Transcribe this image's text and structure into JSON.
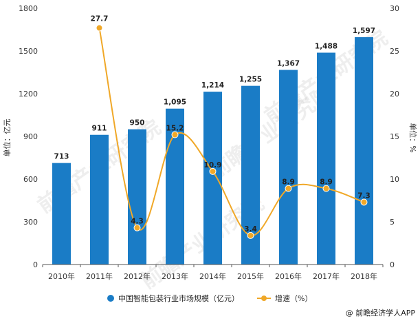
{
  "chart_data": {
    "type": "bar+line",
    "categories": [
      "2010年",
      "2011年",
      "2012年",
      "2013年",
      "2014年",
      "2015年",
      "2016年",
      "2017年",
      "2018年"
    ],
    "series": [
      {
        "name": "中国智能包装行业市场规模（亿元）",
        "type": "bar",
        "axis": "left",
        "values": [
          713,
          911,
          950,
          1095,
          1214,
          1255,
          1367,
          1488,
          1597
        ],
        "labels": [
          "713",
          "911",
          "950",
          "1,095",
          "1,214",
          "1,255",
          "1,367",
          "1,488",
          "1,597"
        ],
        "color": "#1a7cc6"
      },
      {
        "name": "增速（%）",
        "type": "line",
        "axis": "right",
        "smooth": true,
        "values": [
          null,
          27.7,
          4.3,
          15.2,
          10.9,
          3.4,
          8.9,
          8.9,
          7.3
        ],
        "labels": [
          "",
          "27.7",
          "4.3",
          "15.2",
          "10.9",
          "3.4",
          "8.9",
          "8.9",
          "7.3"
        ],
        "color": "#f0a828"
      }
    ],
    "ylabel_left": "单位：亿元",
    "ylabel_right": "单位：%",
    "ylim_left": [
      0,
      1800
    ],
    "yticks_left": [
      0,
      300,
      600,
      900,
      1200,
      1500,
      1800
    ],
    "ylim_right": [
      0,
      30
    ],
    "yticks_right": [
      0,
      5,
      10,
      15,
      20,
      25,
      30
    ],
    "grid": false,
    "legend": "bottom-center"
  },
  "source": "@ 前瞻经济学人APP",
  "watermark": "前瞻产业研究院"
}
